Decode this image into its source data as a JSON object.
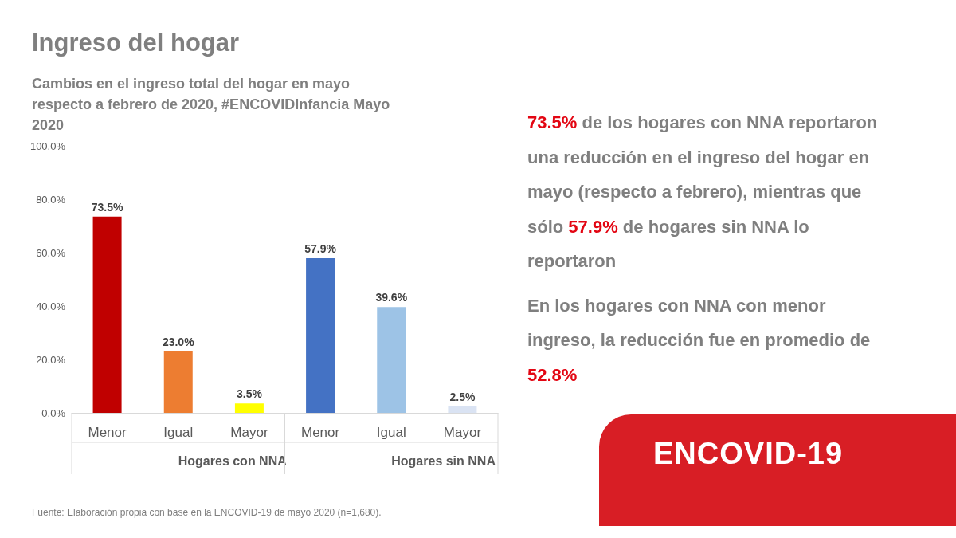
{
  "chart_data": {
    "type": "bar",
    "title": "Ingreso del hogar",
    "subtitle": "Cambios en el ingreso total del hogar en mayo respecto a febrero de 2020, #ENCOVIDInfancia Mayo 2020",
    "categories": [
      "Menor",
      "Igual",
      "Mayor",
      "Menor",
      "Igual",
      "Mayor"
    ],
    "values": [
      73.5,
      23.0,
      3.5,
      57.9,
      39.6,
      2.5
    ],
    "colors": [
      "#c00000",
      "#ed7d31",
      "#ffff00",
      "#4472c4",
      "#9dc3e6",
      "#dae3f3"
    ],
    "value_labels": [
      "73.5%",
      "23.0%",
      "3.5%",
      "57.9%",
      "39.6%",
      "2.5%"
    ],
    "ylim": [
      0,
      100
    ],
    "yticks": [
      {
        "value": 0,
        "label": "0.0%"
      },
      {
        "value": 20,
        "label": "20.0%"
      },
      {
        "value": 40,
        "label": "40.0%"
      },
      {
        "value": 60,
        "label": "60.0%"
      },
      {
        "value": 80,
        "label": "80.0%"
      },
      {
        "value": 100,
        "label": "100.0%"
      }
    ],
    "grid": false,
    "annotations": [
      "Hogares con NNA",
      "Hogares sin NNA",
      "73.5% de los hogares con NNA reportaron una reducción en el ingreso del hogar en mayo (respecto a febrero), mientras que sólo 57.9% de hogares sin NNA lo reportaron",
      "En los hogares con NNA con menor ingreso, la reducción fue en promedio de 52.8%",
      "ENCOVID-19",
      "Fuente: Elaboración propia con base en la ENCOVID-19 de mayo 2020 (n=1,680)."
    ]
  }
}
